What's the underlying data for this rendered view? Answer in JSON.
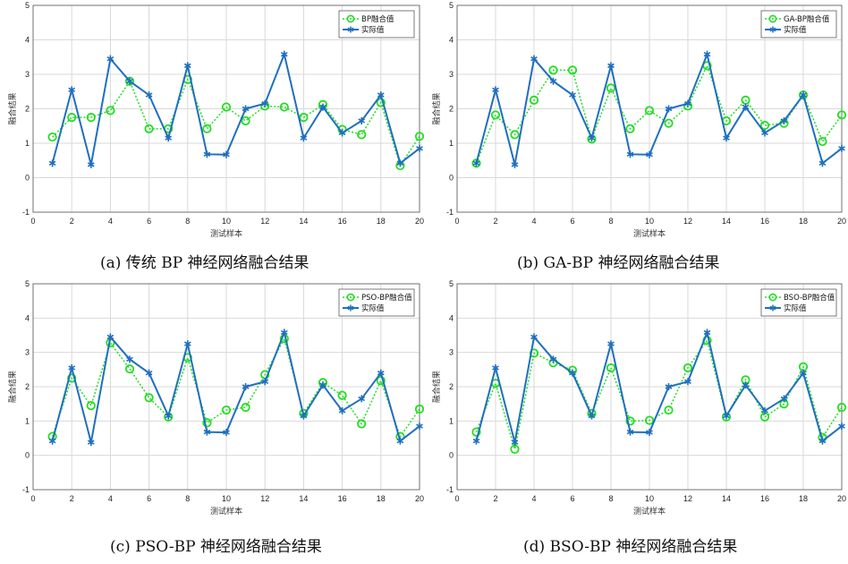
{
  "chart_data": [
    {
      "type": "line",
      "caption": "(a)   传统 BP 神经网络融合结果",
      "xlabel": "测试样本",
      "ylabel": "融合结果",
      "xlim": [
        0,
        20
      ],
      "ylim": [
        -1,
        5
      ],
      "xticks": [
        0,
        2,
        4,
        6,
        8,
        10,
        12,
        14,
        16,
        18,
        20
      ],
      "yticks": [
        -1,
        0,
        1,
        2,
        3,
        4,
        5
      ],
      "grid": true,
      "legend_position": "top-right",
      "x": [
        1,
        2,
        3,
        4,
        5,
        6,
        7,
        8,
        9,
        10,
        11,
        12,
        13,
        14,
        15,
        16,
        17,
        18,
        19,
        20
      ],
      "series": [
        {
          "name": "BP融合值",
          "style": "dotted-circle",
          "color": "#22dd22",
          "values": [
            1.18,
            1.75,
            1.75,
            1.95,
            2.8,
            1.42,
            1.42,
            2.85,
            1.42,
            2.05,
            1.65,
            2.08,
            2.05,
            1.75,
            2.12,
            1.4,
            1.25,
            2.18,
            0.35,
            1.2
          ]
        },
        {
          "name": "实际值",
          "style": "solid-star",
          "color": "#1f6fbf",
          "values": [
            0.42,
            2.55,
            0.38,
            3.45,
            2.8,
            2.4,
            1.15,
            3.25,
            0.68,
            0.67,
            2.0,
            2.15,
            3.58,
            1.15,
            2.05,
            1.3,
            1.65,
            2.4,
            0.42,
            0.85
          ]
        }
      ]
    },
    {
      "type": "line",
      "caption": "(b)   GA-BP 神经网络融合结果",
      "xlabel": "测试样本",
      "ylabel": "融合结果",
      "xlim": [
        0,
        20
      ],
      "ylim": [
        -1,
        5
      ],
      "xticks": [
        0,
        2,
        4,
        6,
        8,
        10,
        12,
        14,
        16,
        18,
        20
      ],
      "yticks": [
        -1,
        0,
        1,
        2,
        3,
        4,
        5
      ],
      "grid": true,
      "legend_position": "top-right",
      "x": [
        1,
        2,
        3,
        4,
        5,
        6,
        7,
        8,
        9,
        10,
        11,
        12,
        13,
        14,
        15,
        16,
        17,
        18,
        19,
        20
      ],
      "series": [
        {
          "name": "GA-BP融合值",
          "style": "dotted-circle",
          "color": "#22dd22",
          "values": [
            0.42,
            1.82,
            1.25,
            2.25,
            3.12,
            3.12,
            1.12,
            2.6,
            1.42,
            1.95,
            1.58,
            2.08,
            3.25,
            1.65,
            2.25,
            1.52,
            1.58,
            2.4,
            1.05,
            1.82
          ]
        },
        {
          "name": "实际值",
          "style": "solid-star",
          "color": "#1f6fbf",
          "values": [
            0.42,
            2.55,
            0.38,
            3.45,
            2.8,
            2.4,
            1.15,
            3.25,
            0.68,
            0.67,
            2.0,
            2.15,
            3.58,
            1.15,
            2.05,
            1.3,
            1.65,
            2.4,
            0.42,
            0.85
          ]
        }
      ]
    },
    {
      "type": "line",
      "caption": "(c)   PSO-BP 神经网络融合结果",
      "xlabel": "测试样本",
      "ylabel": "融合结果",
      "xlim": [
        0,
        20
      ],
      "ylim": [
        -1,
        5
      ],
      "xticks": [
        0,
        2,
        4,
        6,
        8,
        10,
        12,
        14,
        16,
        18,
        20
      ],
      "yticks": [
        -1,
        0,
        1,
        2,
        3,
        4,
        5
      ],
      "grid": true,
      "legend_position": "top-right",
      "x": [
        1,
        2,
        3,
        4,
        5,
        6,
        7,
        8,
        9,
        10,
        11,
        12,
        13,
        14,
        15,
        16,
        17,
        18,
        19,
        20
      ],
      "series": [
        {
          "name": "PSO-BP融合值",
          "style": "dotted-circle",
          "color": "#22dd22",
          "values": [
            0.55,
            2.25,
            1.45,
            3.28,
            2.52,
            1.68,
            1.12,
            2.85,
            0.95,
            1.32,
            1.4,
            2.35,
            3.4,
            1.22,
            2.12,
            1.75,
            0.92,
            2.18,
            0.55,
            1.35
          ]
        },
        {
          "name": "实际值",
          "style": "solid-star",
          "color": "#1f6fbf",
          "values": [
            0.42,
            2.55,
            0.38,
            3.45,
            2.8,
            2.4,
            1.15,
            3.25,
            0.68,
            0.67,
            2.0,
            2.15,
            3.58,
            1.15,
            2.05,
            1.3,
            1.65,
            2.4,
            0.42,
            0.85
          ]
        }
      ]
    },
    {
      "type": "line",
      "caption": "(d)   BSO-BP 神经网络融合结果",
      "xlabel": "测试样本",
      "ylabel": "融合结果",
      "xlim": [
        0,
        20
      ],
      "ylim": [
        -1,
        5
      ],
      "xticks": [
        0,
        2,
        4,
        6,
        8,
        10,
        12,
        14,
        16,
        18,
        20
      ],
      "yticks": [
        -1,
        0,
        1,
        2,
        3,
        4,
        5
      ],
      "grid": true,
      "legend_position": "top-right",
      "x": [
        1,
        2,
        3,
        4,
        5,
        6,
        7,
        8,
        9,
        10,
        11,
        12,
        13,
        14,
        15,
        16,
        17,
        18,
        19,
        20
      ],
      "series": [
        {
          "name": "BSO-BP融合值",
          "style": "dotted-circle",
          "color": "#22dd22",
          "values": [
            0.68,
            2.1,
            0.18,
            2.98,
            2.7,
            2.48,
            1.22,
            2.55,
            1.0,
            1.02,
            1.32,
            2.55,
            3.35,
            1.12,
            2.2,
            1.12,
            1.5,
            2.58,
            0.52,
            1.4
          ]
        },
        {
          "name": "实际值",
          "style": "solid-star",
          "color": "#1f6fbf",
          "values": [
            0.42,
            2.55,
            0.38,
            3.45,
            2.8,
            2.4,
            1.15,
            3.25,
            0.68,
            0.67,
            2.0,
            2.15,
            3.58,
            1.15,
            2.05,
            1.3,
            1.65,
            2.4,
            0.42,
            0.85
          ]
        }
      ]
    }
  ]
}
